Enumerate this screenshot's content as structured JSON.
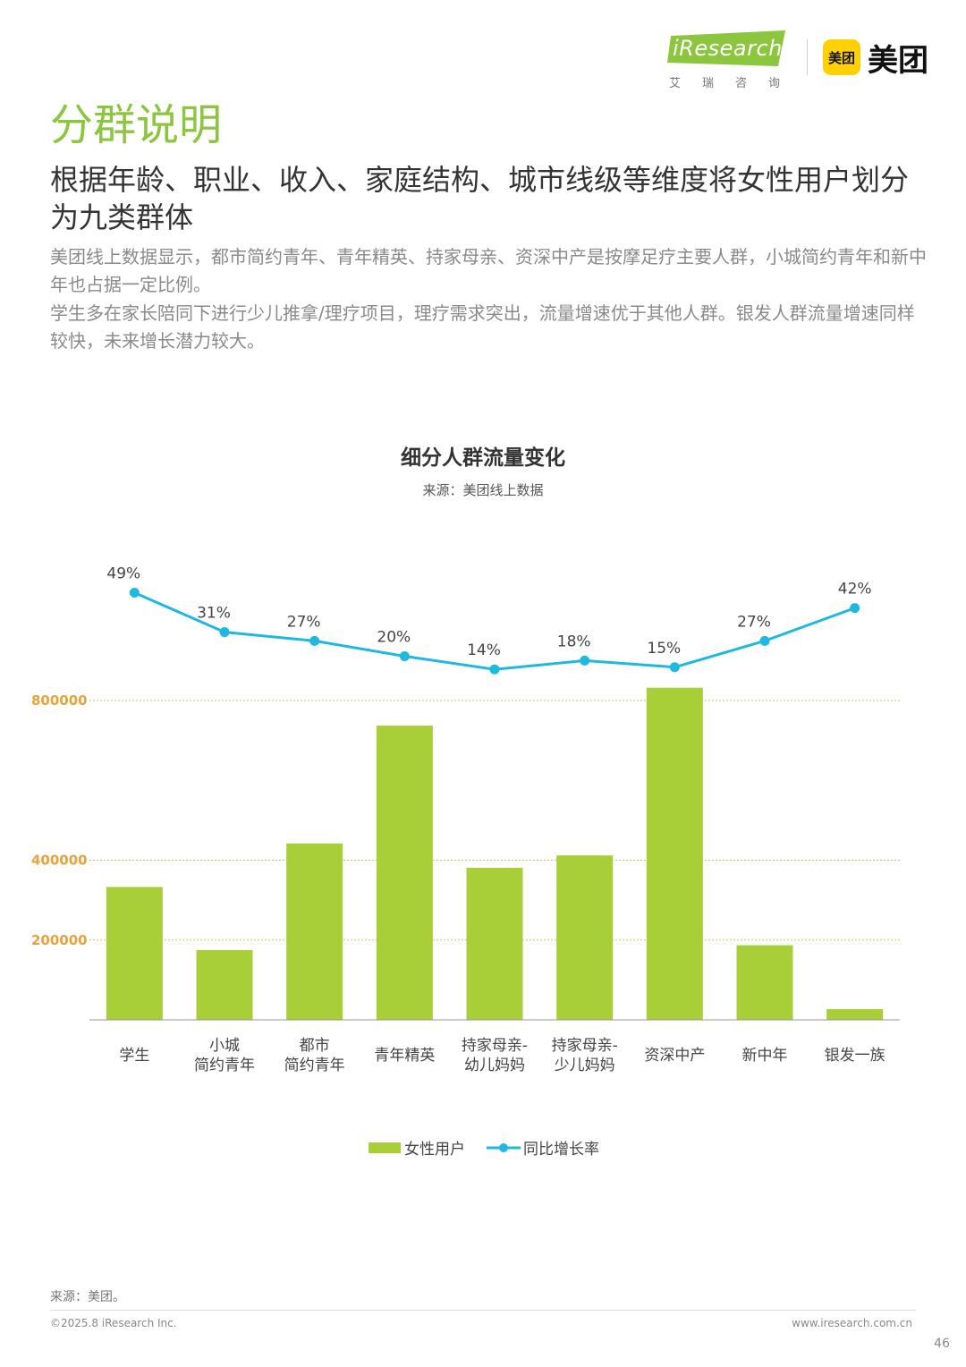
{
  "header": {
    "iresearch_logo": "iResearch",
    "iresearch_sub": "艾瑞咨询",
    "meituan_badge": "美团",
    "meituan_text": "美团"
  },
  "page_title": "分群说明",
  "subtitle": "根据年龄、职业、收入、家庭结构、城市线级等维度将女性用户划分为九类群体",
  "paragraphs": [
    "美团线上数据显示，都市简约青年、青年精英、持家母亲、资深中产是按摩足疗主要人群，小城简约青年和新中年也占据一定比例。",
    "学生多在家长陪同下进行少儿推拿/理疗项目，理疗需求突出，流量增速优于其他人群。银发人群流量增速同样较快，未来增长潜力较大。"
  ],
  "chart_data": {
    "type": "bar",
    "title": "细分人群流量变化",
    "subtitle": "来源：美团线上数据",
    "categories": [
      [
        "学生"
      ],
      [
        "小城",
        "简约青年"
      ],
      [
        "都市",
        "简约青年"
      ],
      [
        "青年精英"
      ],
      [
        "持家母亲-",
        "幼儿妈妈"
      ],
      [
        "持家母亲-",
        "少儿妈妈"
      ],
      [
        "资深中产"
      ],
      [
        "新中年"
      ],
      [
        "银发一族"
      ]
    ],
    "yticks": [
      200000,
      400000,
      800000
    ],
    "ylim": [
      0,
      800000
    ],
    "grid": true,
    "legend_position": "bottom",
    "series": [
      {
        "name": "女性用户",
        "type": "bar",
        "color": "#a8cf38",
        "values": [
          333000,
          175000,
          442000,
          737000,
          381000,
          412000,
          832000,
          187000,
          27000
        ]
      },
      {
        "name": "同比增长率",
        "type": "line",
        "color": "#1fb8e0",
        "values": [
          49,
          31,
          27,
          20,
          14,
          18,
          15,
          27,
          42
        ],
        "labels": [
          "49%",
          "31%",
          "27%",
          "20%",
          "14%",
          "18%",
          "15%",
          "27%",
          "42%"
        ]
      }
    ]
  },
  "footer": {
    "source": "来源：美团。",
    "copyright": "©2025.8 iResearch Inc.",
    "website": "www.iresearch.com.cn",
    "page_number": "46"
  }
}
